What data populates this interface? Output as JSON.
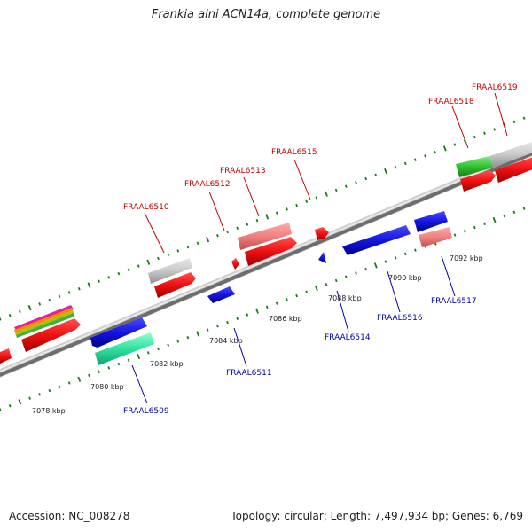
{
  "title": "Frankia alni ACN14a, complete genome",
  "footer": {
    "accession": "Accession: NC_008278",
    "summary": "Topology: circular; Length: 7,497,934 bp; Genes: 6,769"
  },
  "colors": {
    "forward_gene": "#ee1111",
    "reverse_gene": "#1111dd",
    "backbone": "#888888",
    "tick": "#1a7a1a",
    "label_top": "#c00000",
    "label_bottom": "#0000b0"
  },
  "ticks": [
    {
      "label": "7078 kbp"
    },
    {
      "label": "7080 kbp"
    },
    {
      "label": "7082 kbp"
    },
    {
      "label": "7084 kbp"
    },
    {
      "label": "7086 kbp"
    },
    {
      "label": "7088 kbp"
    },
    {
      "label": "7090 kbp"
    },
    {
      "label": "7092 kbp"
    }
  ],
  "gene_labels_top": [
    "FRAAL6510",
    "FRAAL6512",
    "FRAAL6513",
    "FRAAL6515",
    "FRAAL6518",
    "FRAAL6519"
  ],
  "gene_labels_bottom": [
    "FRAAL6509",
    "FRAAL6511",
    "FRAAL6514",
    "FRAAL6516",
    "FRAAL6517"
  ]
}
